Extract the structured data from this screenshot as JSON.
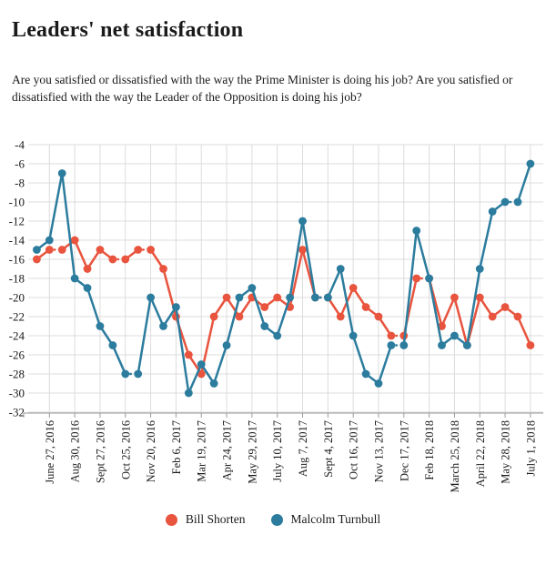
{
  "header": {
    "title": "Leaders' net satisfaction",
    "subtitle": "Are you satisfied or dissatisfied with the way the Prime Minister is doing his job? Are you satisfied or dissatisfied with the way the Leader of the Opposition is doing his job?"
  },
  "chart_data": {
    "type": "line",
    "title": "Leaders' net satisfaction",
    "x_tick_labels": [
      "June 27, 2016",
      "Aug 30, 2016",
      "Sept 27, 2016",
      "Oct 25, 2016",
      "Nov 20, 2016",
      "Feb 6, 2017",
      "Mar 19, 2017",
      "Apr 24, 2017",
      "May 29, 2017",
      "July 10, 2017",
      "Aug 7, 2017",
      "Sept 4, 2017",
      "Oct 16, 2017",
      "Nov 13, 2017",
      "Dec 17, 2017",
      "Feb 18, 2018",
      "March 25, 2018",
      "April 22, 2018",
      "May 28, 2018",
      "July 1, 2018"
    ],
    "points_between_labels": 2,
    "y_ticks": [
      -4,
      -6,
      -8,
      -10,
      -12,
      -14,
      -16,
      -18,
      -20,
      -22,
      -24,
      -26,
      -28,
      -30,
      -32
    ],
    "ylim": [
      -32,
      -4
    ],
    "grid": true,
    "legend_position": "bottom",
    "flat_segments_dotted": true,
    "series": [
      {
        "name": "Bill Shorten",
        "color": "#e8543e",
        "values": [
          -16,
          -15,
          -15,
          -14,
          -17,
          -15,
          -16,
          -16,
          -15,
          -15,
          -17,
          -22,
          -26,
          -28,
          -22,
          -20,
          -22,
          -20,
          -21,
          -20,
          -21,
          -15,
          -20,
          -20,
          -22,
          -19,
          -21,
          -22,
          -24,
          -24,
          -18,
          -18,
          -23,
          -20,
          -25,
          -20,
          -22,
          -21,
          -22,
          -25
        ]
      },
      {
        "name": "Malcolm Turnbull",
        "color": "#2c7c9e",
        "values": [
          -15,
          -14,
          -7,
          -18,
          -19,
          -23,
          -25,
          -28,
          -28,
          -20,
          -23,
          -21,
          -30,
          -27,
          -29,
          -25,
          -20,
          -19,
          -23,
          -24,
          -20,
          -12,
          -20,
          -20,
          -17,
          -24,
          -28,
          -29,
          -25,
          -25,
          -13,
          -18,
          -25,
          -24,
          -25,
          -17,
          -11,
          -10,
          -10,
          -6
        ]
      }
    ],
    "colors": {
      "grid": "#dcdcdc",
      "axis": "#9a9a9a",
      "text": "#1a1a1a"
    }
  }
}
